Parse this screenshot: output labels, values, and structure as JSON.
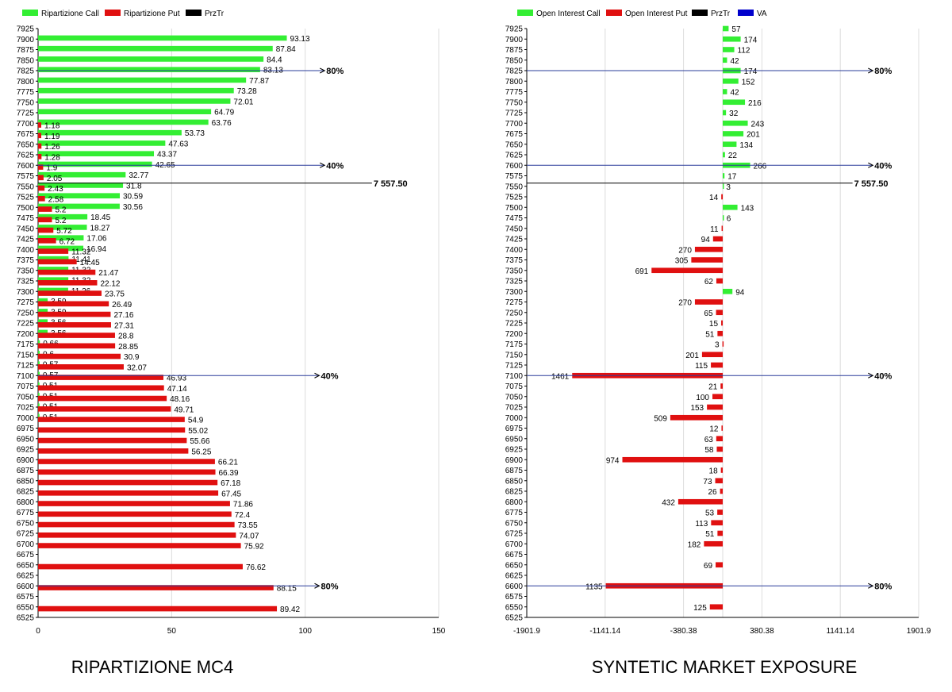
{
  "colors": {
    "call": "#33ee33",
    "put": "#e01010",
    "prztr": "#000000",
    "va": "#0000cc",
    "grid": "#dcdcdc",
    "marker_line": "#2a3c9a"
  },
  "chart_data": [
    {
      "type": "bar",
      "orientation": "horizontal",
      "title": "RIPARTIZIONE MC4",
      "legend": [
        "Ripartizione Call",
        "Ripartizione Put",
        "PrzTr"
      ],
      "legend_position": "top-left",
      "grid": true,
      "xlim": [
        0,
        150
      ],
      "xticks": [
        "0",
        "50",
        "100",
        "150"
      ],
      "ylim": [
        6525,
        7925
      ],
      "strikes": [
        "7925",
        "7900",
        "7875",
        "7850",
        "7825",
        "7800",
        "7775",
        "7750",
        "7725",
        "7700",
        "7675",
        "7650",
        "7625",
        "7600",
        "7575",
        "7550",
        "7525",
        "7500",
        "7475",
        "7450",
        "7425",
        "7400",
        "7375",
        "7350",
        "7325",
        "7300",
        "7275",
        "7250",
        "7225",
        "7200",
        "7175",
        "7150",
        "7125",
        "7100",
        "7075",
        "7050",
        "7025",
        "7000",
        "6975",
        "6950",
        "6925",
        "6900",
        "6875",
        "6850",
        "6825",
        "6800",
        "6775",
        "6750",
        "6725",
        "6700",
        "6675",
        "6650",
        "6625",
        "6600",
        "6575",
        "6550",
        "6525"
      ],
      "series": [
        {
          "name": "Ripartizione Call",
          "points": [
            {
              "y": 7900,
              "v": 93.13,
              "label": "93.13"
            },
            {
              "y": 7875,
              "v": 87.84,
              "label": "87.84"
            },
            {
              "y": 7850,
              "v": 84.4,
              "label": "84.4"
            },
            {
              "y": 7825,
              "v": 83.13,
              "label": "83.13"
            },
            {
              "y": 7800,
              "v": 77.87,
              "label": "77.87"
            },
            {
              "y": 7775,
              "v": 73.28,
              "label": "73.28"
            },
            {
              "y": 7750,
              "v": 72.01,
              "label": "72.01"
            },
            {
              "y": 7725,
              "v": 64.79,
              "label": "64.79"
            },
            {
              "y": 7700,
              "v": 63.76,
              "label": "63.76"
            },
            {
              "y": 7675,
              "v": 53.73,
              "label": "53.73"
            },
            {
              "y": 7650,
              "v": 47.63,
              "label": "47.63"
            },
            {
              "y": 7625,
              "v": 43.37,
              "label": "43.37"
            },
            {
              "y": 7600,
              "v": 42.65,
              "label": "42.65"
            },
            {
              "y": 7575,
              "v": 32.77,
              "label": "32.77"
            },
            {
              "y": 7550,
              "v": 31.8,
              "label": "31.8"
            },
            {
              "y": 7525,
              "v": 30.59,
              "label": "30.59"
            },
            {
              "y": 7500,
              "v": 30.56,
              "label": "30.56"
            },
            {
              "y": 7475,
              "v": 18.45,
              "label": "18.45"
            },
            {
              "y": 7450,
              "v": 18.27,
              "label": "18.27"
            },
            {
              "y": 7425,
              "v": 17.06,
              "label": "17.06"
            },
            {
              "y": 7400,
              "v": 16.94,
              "label": "16.94"
            },
            {
              "y": 7375,
              "v": 11.41,
              "label": "11.41"
            },
            {
              "y": 7350,
              "v": 11.32,
              "label": "11.32"
            },
            {
              "y": 7325,
              "v": 11.32,
              "label": "11.32"
            },
            {
              "y": 7300,
              "v": 11.26,
              "label": "11.26"
            },
            {
              "y": 7275,
              "v": 3.59,
              "label": "3.59"
            },
            {
              "y": 7250,
              "v": 3.59,
              "label": "3.59"
            },
            {
              "y": 7225,
              "v": 3.56,
              "label": "3.56"
            },
            {
              "y": 7200,
              "v": 3.56,
              "label": "3.56"
            },
            {
              "y": 7175,
              "v": 0.66,
              "label": "0.66"
            },
            {
              "y": 7150,
              "v": 0.6,
              "label": "0.6"
            },
            {
              "y": 7125,
              "v": 0.57,
              "label": "0.57"
            },
            {
              "y": 7100,
              "v": 0.57,
              "label": "0.57"
            },
            {
              "y": 7075,
              "v": 0.51,
              "label": "0.51"
            },
            {
              "y": 7050,
              "v": 0.51,
              "label": "0.51"
            },
            {
              "y": 7025,
              "v": 0.51,
              "label": "0.51"
            },
            {
              "y": 7000,
              "v": 0.51,
              "label": "0.51"
            }
          ]
        },
        {
          "name": "Ripartizione Put",
          "points": [
            {
              "y": 7700,
              "v": 1.18,
              "label": "1.18"
            },
            {
              "y": 7675,
              "v": 1.19,
              "label": "1.19"
            },
            {
              "y": 7650,
              "v": 1.26,
              "label": "1.26"
            },
            {
              "y": 7625,
              "v": 1.28,
              "label": "1.28"
            },
            {
              "y": 7600,
              "v": 1.9,
              "label": "1.9"
            },
            {
              "y": 7575,
              "v": 2.05,
              "label": "2.05"
            },
            {
              "y": 7550,
              "v": 2.43,
              "label": "2.43"
            },
            {
              "y": 7525,
              "v": 2.58,
              "label": "2.58"
            },
            {
              "y": 7500,
              "v": 5.2,
              "label": "5.2"
            },
            {
              "y": 7475,
              "v": 5.2,
              "label": "5.2"
            },
            {
              "y": 7450,
              "v": 5.72,
              "label": "5.72"
            },
            {
              "y": 7425,
              "v": 6.72,
              "label": "6.72"
            },
            {
              "y": 7400,
              "v": 11.32,
              "label": "11.32"
            },
            {
              "y": 7375,
              "v": 14.45,
              "label": "14.45"
            },
            {
              "y": 7350,
              "v": 21.47,
              "label": "21.47"
            },
            {
              "y": 7325,
              "v": 22.12,
              "label": "22.12"
            },
            {
              "y": 7300,
              "v": 23.75,
              "label": "23.75"
            },
            {
              "y": 7275,
              "v": 26.49,
              "label": "26.49"
            },
            {
              "y": 7250,
              "v": 27.16,
              "label": "27.16"
            },
            {
              "y": 7225,
              "v": 27.31,
              "label": "27.31"
            },
            {
              "y": 7200,
              "v": 28.8,
              "label": "28.8"
            },
            {
              "y": 7175,
              "v": 28.85,
              "label": "28.85"
            },
            {
              "y": 7150,
              "v": 30.9,
              "label": "30.9"
            },
            {
              "y": 7125,
              "v": 32.07,
              "label": "32.07"
            },
            {
              "y": 7100,
              "v": 46.93,
              "label": "46.93"
            },
            {
              "y": 7075,
              "v": 47.14,
              "label": "47.14"
            },
            {
              "y": 7050,
              "v": 48.16,
              "label": "48.16"
            },
            {
              "y": 7025,
              "v": 49.71,
              "label": "49.71"
            },
            {
              "y": 7000,
              "v": 54.9,
              "label": "54.9"
            },
            {
              "y": 6975,
              "v": 55.02,
              "label": "55.02"
            },
            {
              "y": 6950,
              "v": 55.66,
              "label": "55.66"
            },
            {
              "y": 6925,
              "v": 56.25,
              "label": "56.25"
            },
            {
              "y": 6900,
              "v": 66.21,
              "label": "66.21"
            },
            {
              "y": 6875,
              "v": 66.39,
              "label": "66.39"
            },
            {
              "y": 6850,
              "v": 67.18,
              "label": "67.18"
            },
            {
              "y": 6825,
              "v": 67.45,
              "label": "67.45"
            },
            {
              "y": 6800,
              "v": 71.86,
              "label": "71.86"
            },
            {
              "y": 6775,
              "v": 72.4,
              "label": "72.4"
            },
            {
              "y": 6750,
              "v": 73.55,
              "label": "73.55"
            },
            {
              "y": 6725,
              "v": 74.07,
              "label": "74.07"
            },
            {
              "y": 6700,
              "v": 75.92,
              "label": "75.92"
            },
            {
              "y": 6650,
              "v": 76.62,
              "label": "76.62"
            },
            {
              "y": 6600,
              "v": 88.15,
              "label": "88.15"
            },
            {
              "y": 6550,
              "v": 89.42,
              "label": "89.42"
            }
          ]
        }
      ],
      "prztr": {
        "y": 7557.5,
        "label": "7 557.50",
        "x_end": 125
      },
      "markers": [
        {
          "y": 7825,
          "label": "80%",
          "x_end": 107
        },
        {
          "y": 7600,
          "label": "40%",
          "x_end": 107
        },
        {
          "y": 7100,
          "label": "40%",
          "x_end": 105
        },
        {
          "y": 6600,
          "label": "80%",
          "x_end": 105
        }
      ]
    },
    {
      "type": "bar",
      "orientation": "horizontal",
      "title": "SYNTETIC MARKET EXPOSURE",
      "legend": [
        "Open Interest Call",
        "Open Interest Put",
        "PrzTr",
        "VA"
      ],
      "legend_position": "top-left",
      "grid": true,
      "xlim": [
        -1901.9,
        1901.9
      ],
      "xticks": [
        "-1901.9",
        "-1141.14",
        "-380.38",
        "380.38",
        "1141.14",
        "1901.9"
      ],
      "ylim": [
        6525,
        7925
      ],
      "strikes": [
        "7925",
        "7900",
        "7875",
        "7850",
        "7825",
        "7800",
        "7775",
        "7750",
        "7725",
        "7700",
        "7675",
        "7650",
        "7625",
        "7600",
        "7575",
        "7550",
        "7525",
        "7500",
        "7475",
        "7450",
        "7425",
        "7400",
        "7375",
        "7350",
        "7325",
        "7300",
        "7275",
        "7250",
        "7225",
        "7200",
        "7175",
        "7150",
        "7125",
        "7100",
        "7075",
        "7050",
        "7025",
        "7000",
        "6975",
        "6950",
        "6925",
        "6900",
        "6875",
        "6850",
        "6825",
        "6800",
        "6775",
        "6750",
        "6725",
        "6700",
        "6675",
        "6650",
        "6625",
        "6600",
        "6575",
        "6550",
        "6525"
      ],
      "series": [
        {
          "name": "Open Interest Call",
          "points": [
            {
              "y": 7925,
              "v": 57,
              "label": "57"
            },
            {
              "y": 7900,
              "v": 174,
              "label": "174"
            },
            {
              "y": 7875,
              "v": 112,
              "label": "112"
            },
            {
              "y": 7850,
              "v": 42,
              "label": "42"
            },
            {
              "y": 7825,
              "v": 174,
              "label": "174"
            },
            {
              "y": 7800,
              "v": 152,
              "label": "152"
            },
            {
              "y": 7775,
              "v": 42,
              "label": "42"
            },
            {
              "y": 7750,
              "v": 216,
              "label": "216"
            },
            {
              "y": 7725,
              "v": 32,
              "label": "32"
            },
            {
              "y": 7700,
              "v": 243,
              "label": "243"
            },
            {
              "y": 7675,
              "v": 201,
              "label": "201"
            },
            {
              "y": 7650,
              "v": 134,
              "label": "134"
            },
            {
              "y": 7625,
              "v": 22,
              "label": "22"
            },
            {
              "y": 7600,
              "v": 266,
              "label": "266"
            },
            {
              "y": 7575,
              "v": 17,
              "label": "17"
            },
            {
              "y": 7550,
              "v": 3,
              "label": "3"
            },
            {
              "y": 7500,
              "v": 143,
              "label": "143"
            },
            {
              "y": 7475,
              "v": 6,
              "label": "6"
            },
            {
              "y": 7300,
              "v": 94,
              "label": "94"
            }
          ]
        },
        {
          "name": "Open Interest Put",
          "points": [
            {
              "y": 7525,
              "v": -14,
              "label": "14"
            },
            {
              "y": 7450,
              "v": -11,
              "label": "11"
            },
            {
              "y": 7425,
              "v": -94,
              "label": "94"
            },
            {
              "y": 7400,
              "v": -270,
              "label": "270"
            },
            {
              "y": 7375,
              "v": -305,
              "label": "305"
            },
            {
              "y": 7350,
              "v": -691,
              "label": "691"
            },
            {
              "y": 7325,
              "v": -62,
              "label": "62"
            },
            {
              "y": 7275,
              "v": -270,
              "label": "270"
            },
            {
              "y": 7250,
              "v": -65,
              "label": "65"
            },
            {
              "y": 7225,
              "v": -15,
              "label": "15"
            },
            {
              "y": 7200,
              "v": -51,
              "label": "51"
            },
            {
              "y": 7175,
              "v": -3,
              "label": "3"
            },
            {
              "y": 7150,
              "v": -201,
              "label": "201"
            },
            {
              "y": 7125,
              "v": -115,
              "label": "115"
            },
            {
              "y": 7100,
              "v": -1461,
              "label": "1461"
            },
            {
              "y": 7075,
              "v": -21,
              "label": "21"
            },
            {
              "y": 7050,
              "v": -100,
              "label": "100"
            },
            {
              "y": 7025,
              "v": -153,
              "label": "153"
            },
            {
              "y": 7000,
              "v": -509,
              "label": "509"
            },
            {
              "y": 6975,
              "v": -12,
              "label": "12"
            },
            {
              "y": 6950,
              "v": -63,
              "label": "63"
            },
            {
              "y": 6925,
              "v": -58,
              "label": "58"
            },
            {
              "y": 6900,
              "v": -974,
              "label": "974"
            },
            {
              "y": 6875,
              "v": -18,
              "label": "18"
            },
            {
              "y": 6850,
              "v": -73,
              "label": "73"
            },
            {
              "y": 6825,
              "v": -26,
              "label": "26"
            },
            {
              "y": 6800,
              "v": -432,
              "label": "432"
            },
            {
              "y": 6775,
              "v": -53,
              "label": "53"
            },
            {
              "y": 6750,
              "v": -113,
              "label": "113"
            },
            {
              "y": 6725,
              "v": -51,
              "label": "51"
            },
            {
              "y": 6700,
              "v": -182,
              "label": "182"
            },
            {
              "y": 6650,
              "v": -69,
              "label": "69"
            },
            {
              "y": 6600,
              "v": -1135,
              "label": "1135"
            },
            {
              "y": 6550,
              "v": -125,
              "label": "125"
            }
          ]
        }
      ],
      "prztr": {
        "y": 7557.5,
        "label": "7 557.50",
        "x_start": -1901.9,
        "x_end": 1260
      },
      "markers": [
        {
          "y": 7825,
          "label": "80%",
          "x_end": 1450
        },
        {
          "y": 7600,
          "label": "40%",
          "x_end": 1450
        },
        {
          "y": 7100,
          "label": "40%",
          "x_end": 1450
        },
        {
          "y": 6600,
          "label": "80%",
          "x_end": 1450
        }
      ]
    }
  ]
}
